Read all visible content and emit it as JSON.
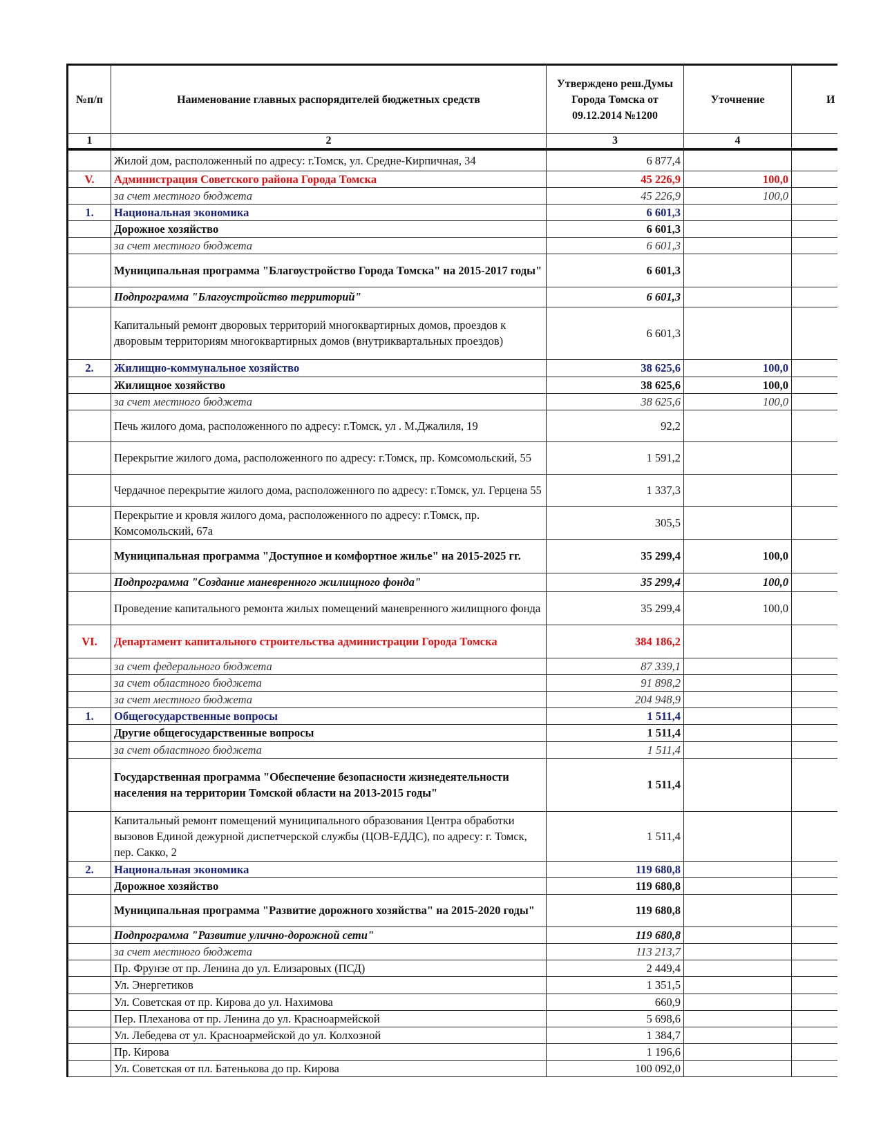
{
  "header": {
    "col1": "№п/п",
    "col2": "Наименование главных распорядителей бюджетных средств",
    "col3": "Утверждено реш.Думы Города Томска от 09.12.2014 №1200",
    "col4": "Уточнение",
    "col5": "И",
    "nums": [
      "1",
      "2",
      "3",
      "4",
      ""
    ]
  },
  "colors": {
    "red": "#e01010",
    "blue": "#1a237e"
  },
  "rows": [
    {
      "no": "",
      "name": "Жилой дом, расположенный по адресу: г.Томск, ул. Средне-Кирпичная, 34",
      "approved": "6 877,4",
      "change": "",
      "style": "normal"
    },
    {
      "no": "V.",
      "name": "Администрация Советского района Города Томска",
      "approved": "45 226,9",
      "change": "100,0",
      "style": "red"
    },
    {
      "no": "",
      "name": "за счет местного бюджета",
      "approved": "45 226,9",
      "change": "100,0",
      "style": "italic"
    },
    {
      "no": "1.",
      "name": "Национальная экономика",
      "approved": "6 601,3",
      "change": "",
      "style": "blue"
    },
    {
      "no": "",
      "name": "Дорожное хозяйство",
      "approved": "6 601,3",
      "change": "",
      "style": "bold"
    },
    {
      "no": "",
      "name": "за счет местного бюджета",
      "approved": "6 601,3",
      "change": "",
      "style": "italic"
    },
    {
      "no": "",
      "name": "Муниципальная программа \"Благоустройство Города Томска\" на 2015-2017 годы\"",
      "approved": "6 601,3",
      "change": "",
      "style": "bold"
    },
    {
      "no": "",
      "name": "Подпрограмма \"Благоустройство территорий\"",
      "approved": "6 601,3",
      "change": "",
      "style": "bolditalic"
    },
    {
      "no": "",
      "name": "Капитальный ремонт дворовых территорий многоквартирных домов, проездов к дворовым территориям многоквартирных домов (внутриквартальных проездов)",
      "approved": "6 601,3",
      "change": "",
      "style": "normal"
    },
    {
      "no": "2.",
      "name": "Жилищно-коммунальное хозяйство",
      "approved": "38 625,6",
      "change": "100,0",
      "style": "blue"
    },
    {
      "no": "",
      "name": "Жилищное хозяйство",
      "approved": "38 625,6",
      "change": "100,0",
      "style": "bold"
    },
    {
      "no": "",
      "name": "за счет местного бюджета",
      "approved": "38 625,6",
      "change": "100,0",
      "style": "italic"
    },
    {
      "no": "",
      "name": "Печь жилого дома, расположенного по адресу: г.Томск, ул . М.Джалиля, 19",
      "approved": "92,2",
      "change": "",
      "style": "normal"
    },
    {
      "no": "",
      "name": "Перекрытие жилого дома, расположенного по адресу: г.Томск, пр. Комсомольский, 55",
      "approved": "1 591,2",
      "change": "",
      "style": "normal"
    },
    {
      "no": "",
      "name": "Чердачное перекрытие жилого дома, расположенного по адресу: г.Томск, ул. Герцена 55",
      "approved": "1 337,3",
      "change": "",
      "style": "normal"
    },
    {
      "no": "",
      "name": "Перекрытие и кровля жилого дома, расположенного по адресу: г.Томск, пр. Комсомольский, 67а",
      "approved": "305,5",
      "change": "",
      "style": "normal"
    },
    {
      "no": "",
      "name": "Муниципальная программа \"Доступное и комфортное жилье\" на 2015-2025 гг.",
      "approved": "35 299,4",
      "change": "100,0",
      "style": "bold"
    },
    {
      "no": "",
      "name": "Подпрограмма \"Создание маневренного жилищного фонда\"",
      "approved": "35 299,4",
      "change": "100,0",
      "style": "bolditalic"
    },
    {
      "no": "",
      "name": "Проведение капитального ремонта жилых помещений маневренного жилищного фонда",
      "approved": "35 299,4",
      "change": "100,0",
      "style": "normal"
    },
    {
      "no": "VI.",
      "name": "Департамент капитального строительства администрации Города Томска",
      "approved": "384 186,2",
      "change": "",
      "style": "red"
    },
    {
      "no": "",
      "name": "за счет федерального бюджета",
      "approved": "87 339,1",
      "change": "",
      "style": "italic"
    },
    {
      "no": "",
      "name": "за счет областного бюджета",
      "approved": "91 898,2",
      "change": "",
      "style": "italic"
    },
    {
      "no": "",
      "name": "за счет местного бюджета",
      "approved": "204 948,9",
      "change": "",
      "style": "italic"
    },
    {
      "no": "1.",
      "name": "Общегосударственные вопросы",
      "approved": "1 511,4",
      "change": "",
      "style": "blue"
    },
    {
      "no": "",
      "name": "Другие общегосударственные вопросы",
      "approved": "1 511,4",
      "change": "",
      "style": "bold"
    },
    {
      "no": "",
      "name": "за счет областного бюджета",
      "approved": "1 511,4",
      "change": "",
      "style": "italic"
    },
    {
      "no": "",
      "name": "Государственная программа \"Обеспечение безопасности жизнедеятельности населения на территории Томской области на 2013-2015 годы\"",
      "approved": "1 511,4",
      "change": "",
      "style": "bold"
    },
    {
      "no": "",
      "name": "Капитальный ремонт помещений муниципального образования Центра обработки вызовов Единой дежурной диспетчерской службы (ЦОВ-ЕДДС), по адресу: г. Томск, пер. Сакко, 2",
      "approved": "1 511,4",
      "change": "",
      "style": "normal"
    },
    {
      "no": "2.",
      "name": "Национальная экономика",
      "approved": "119 680,8",
      "change": "",
      "style": "blue"
    },
    {
      "no": "",
      "name": "Дорожное хозяйство",
      "approved": "119 680,8",
      "change": "",
      "style": "bold"
    },
    {
      "no": "",
      "name": "Муниципальная программа \"Развитие дорожного хозяйства\" на 2015-2020 годы\"",
      "approved": "119 680,8",
      "change": "",
      "style": "bold"
    },
    {
      "no": "",
      "name": "Подпрограмма  \"Развитие улично-дорожной сети\"",
      "approved": "119 680,8",
      "change": "",
      "style": "bolditalic"
    },
    {
      "no": "",
      "name": "за счет местного бюджета",
      "approved": "113 213,7",
      "change": "",
      "style": "italic"
    },
    {
      "no": "",
      "name": "Пр. Фрунзе от пр. Ленина до ул. Елизаровых (ПСД)",
      "approved": "2 449,4",
      "change": "",
      "style": "normal"
    },
    {
      "no": "",
      "name": "Ул. Энергетиков",
      "approved": "1 351,5",
      "change": "",
      "style": "normal"
    },
    {
      "no": "",
      "name": "Ул. Советская от пр. Кирова до ул. Нахимова",
      "approved": "660,9",
      "change": "",
      "style": "normal"
    },
    {
      "no": "",
      "name": "Пер. Плеханова от пр. Ленина до ул. Красноармейской",
      "approved": "5 698,6",
      "change": "",
      "style": "normal"
    },
    {
      "no": "",
      "name": "Ул. Лебедева от ул. Красноармейской до ул. Колхозной",
      "approved": "1 384,7",
      "change": "",
      "style": "normal"
    },
    {
      "no": "",
      "name": "Пр. Кирова",
      "approved": "1 196,6",
      "change": "",
      "style": "normal"
    },
    {
      "no": "",
      "name": "Ул. Советская от пл. Батенькова до пр. Кирова",
      "approved": "100 092,0",
      "change": "",
      "style": "normal"
    }
  ]
}
